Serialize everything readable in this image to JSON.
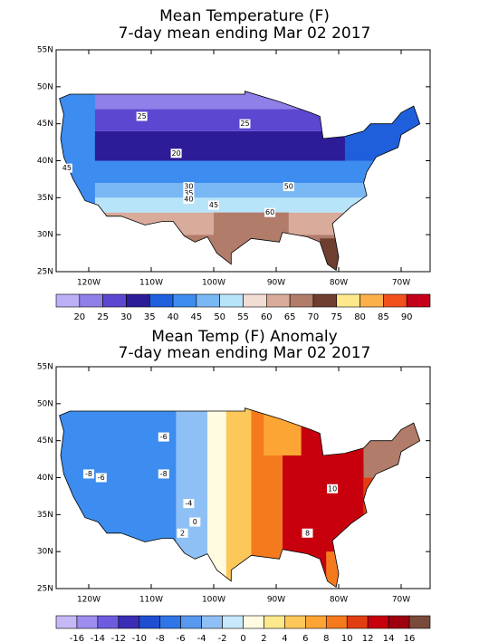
{
  "panels": [
    {
      "title": "Mean Temperature (F)",
      "subtitle": "7-day mean ending Mar 02 2017",
      "lat_labels": [
        "55N",
        "50N",
        "45N",
        "40N",
        "35N",
        "30N",
        "25N"
      ],
      "lon_labels": [
        "120W",
        "110W",
        "100W",
        "90W",
        "80W",
        "70W"
      ],
      "colorbar": {
        "colors": [
          "#bdb0f7",
          "#8f7fe8",
          "#5b47d0",
          "#2c1c98",
          "#1f5fdc",
          "#3d8cef",
          "#7ab8f5",
          "#b8e4fa",
          "#f2ddd5",
          "#d8ab9a",
          "#b27c6a",
          "#6e3f30",
          "#fde98c",
          "#fdb04a",
          "#f2501c",
          "#c4001a"
        ],
        "labels": [
          20,
          25,
          30,
          35,
          40,
          45,
          50,
          55,
          60,
          65,
          70,
          75,
          80,
          85,
          90
        ]
      },
      "contour_labels": [
        "25",
        "25",
        "20",
        "45",
        "30",
        "35",
        "40",
        "45",
        "50",
        "60"
      ]
    },
    {
      "title": "Mean Temp (F) Anomaly",
      "subtitle": "7-day mean ending Mar 02 2017",
      "lat_labels": [
        "55N",
        "50N",
        "45N",
        "40N",
        "35N",
        "30N",
        "25N"
      ],
      "lon_labels": [
        "120W",
        "110W",
        "100W",
        "90W",
        "80W",
        "70W"
      ],
      "colorbar": {
        "colors": [
          "#c6b8f7",
          "#9f8df0",
          "#6e5ce0",
          "#3a2db5",
          "#1f4fd0",
          "#2f75e6",
          "#5898ef",
          "#8fc0f5",
          "#c8e8fb",
          "#fffbe0",
          "#fde98c",
          "#fdc85a",
          "#fda534",
          "#f57a1e",
          "#e23d12",
          "#c8000e",
          "#9e0010",
          "#7a4a3a"
        ],
        "labels": [
          -16,
          -14,
          -12,
          -10,
          -8,
          -6,
          -4,
          -2,
          0,
          2,
          4,
          6,
          8,
          10,
          12,
          14,
          16
        ]
      },
      "contour_labels": [
        "-6",
        "-8",
        "-6",
        "-8",
        "-4",
        "0",
        "2",
        "10",
        "8"
      ]
    }
  ]
}
